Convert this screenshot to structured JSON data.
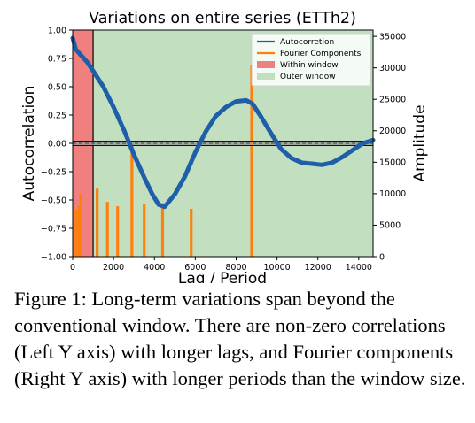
{
  "chart_data": {
    "type": "line",
    "title": "Variations on entire series (ETTh2)",
    "xlabel": "Lag / Period",
    "ylabel_left": "Autocorrelation",
    "ylabel_right": "Amplitude",
    "xlim": [
      0,
      14700
    ],
    "ylim_left": [
      -1.0,
      1.0
    ],
    "ylim_right": [
      0,
      36000
    ],
    "x_ticks": [
      0,
      2000,
      4000,
      6000,
      8000,
      10000,
      12000,
      14000
    ],
    "y_left_ticks": [
      1.0,
      0.75,
      0.5,
      0.25,
      0.0,
      -0.25,
      -0.5,
      -0.75,
      -1.0
    ],
    "y_left_tick_labels": [
      "1.00",
      "0.75",
      "0.50",
      "0.25",
      "0.00",
      "−0.25",
      "−0.50",
      "−0.75",
      "−1.00"
    ],
    "y_right_ticks": [
      0,
      5000,
      10000,
      15000,
      20000,
      25000,
      30000,
      35000
    ],
    "within_window": [
      0,
      1000
    ],
    "outer_window": [
      1000,
      14700
    ],
    "legend_position": "top-right",
    "legend": [
      {
        "label": "Autocorretion",
        "kind": "line",
        "color": "#1f5ea8"
      },
      {
        "label": "Fourier Components",
        "kind": "line",
        "color": "#ff7f0e"
      },
      {
        "label": "Within window",
        "kind": "patch",
        "color": "#f08080"
      },
      {
        "label": "Outer window",
        "kind": "patch",
        "color": "#c2e0c0"
      }
    ],
    "series": [
      {
        "name": "Autocorretion",
        "axis": "left",
        "color": "#1f5ea8",
        "x": [
          0,
          150,
          400,
          700,
          1000,
          1500,
          2000,
          2500,
          3000,
          3500,
          3900,
          4200,
          4500,
          5000,
          5500,
          6000,
          6500,
          7000,
          7500,
          8000,
          8500,
          8800,
          9200,
          9700,
          10200,
          10700,
          11200,
          11700,
          12200,
          12700,
          13200,
          13700,
          14200,
          14700
        ],
        "values": [
          0.93,
          0.83,
          0.78,
          0.72,
          0.64,
          0.5,
          0.32,
          0.12,
          -0.1,
          -0.3,
          -0.45,
          -0.54,
          -0.56,
          -0.45,
          -0.29,
          -0.08,
          0.1,
          0.24,
          0.32,
          0.37,
          0.38,
          0.35,
          0.24,
          0.09,
          -0.05,
          -0.13,
          -0.17,
          -0.18,
          -0.19,
          -0.17,
          -0.12,
          -0.06,
          0.0,
          0.03
        ]
      },
      {
        "name": "Fourier Components",
        "axis": "right",
        "color": "#ff7f0e",
        "kind": "stems",
        "x": [
          168,
          290,
          400,
          1200,
          1700,
          2200,
          2900,
          3500,
          4400,
          5800,
          8760
        ],
        "values": [
          7500,
          8000,
          10000,
          10800,
          8700,
          8000,
          18000,
          8300,
          8500,
          7600,
          30500
        ]
      }
    ]
  },
  "caption": "Figure 1: Long-term variations span beyond the conventional window. There are non-zero correlations (Left Y axis) with longer lags, and Fourier components (Right Y axis) with longer periods than the window size."
}
